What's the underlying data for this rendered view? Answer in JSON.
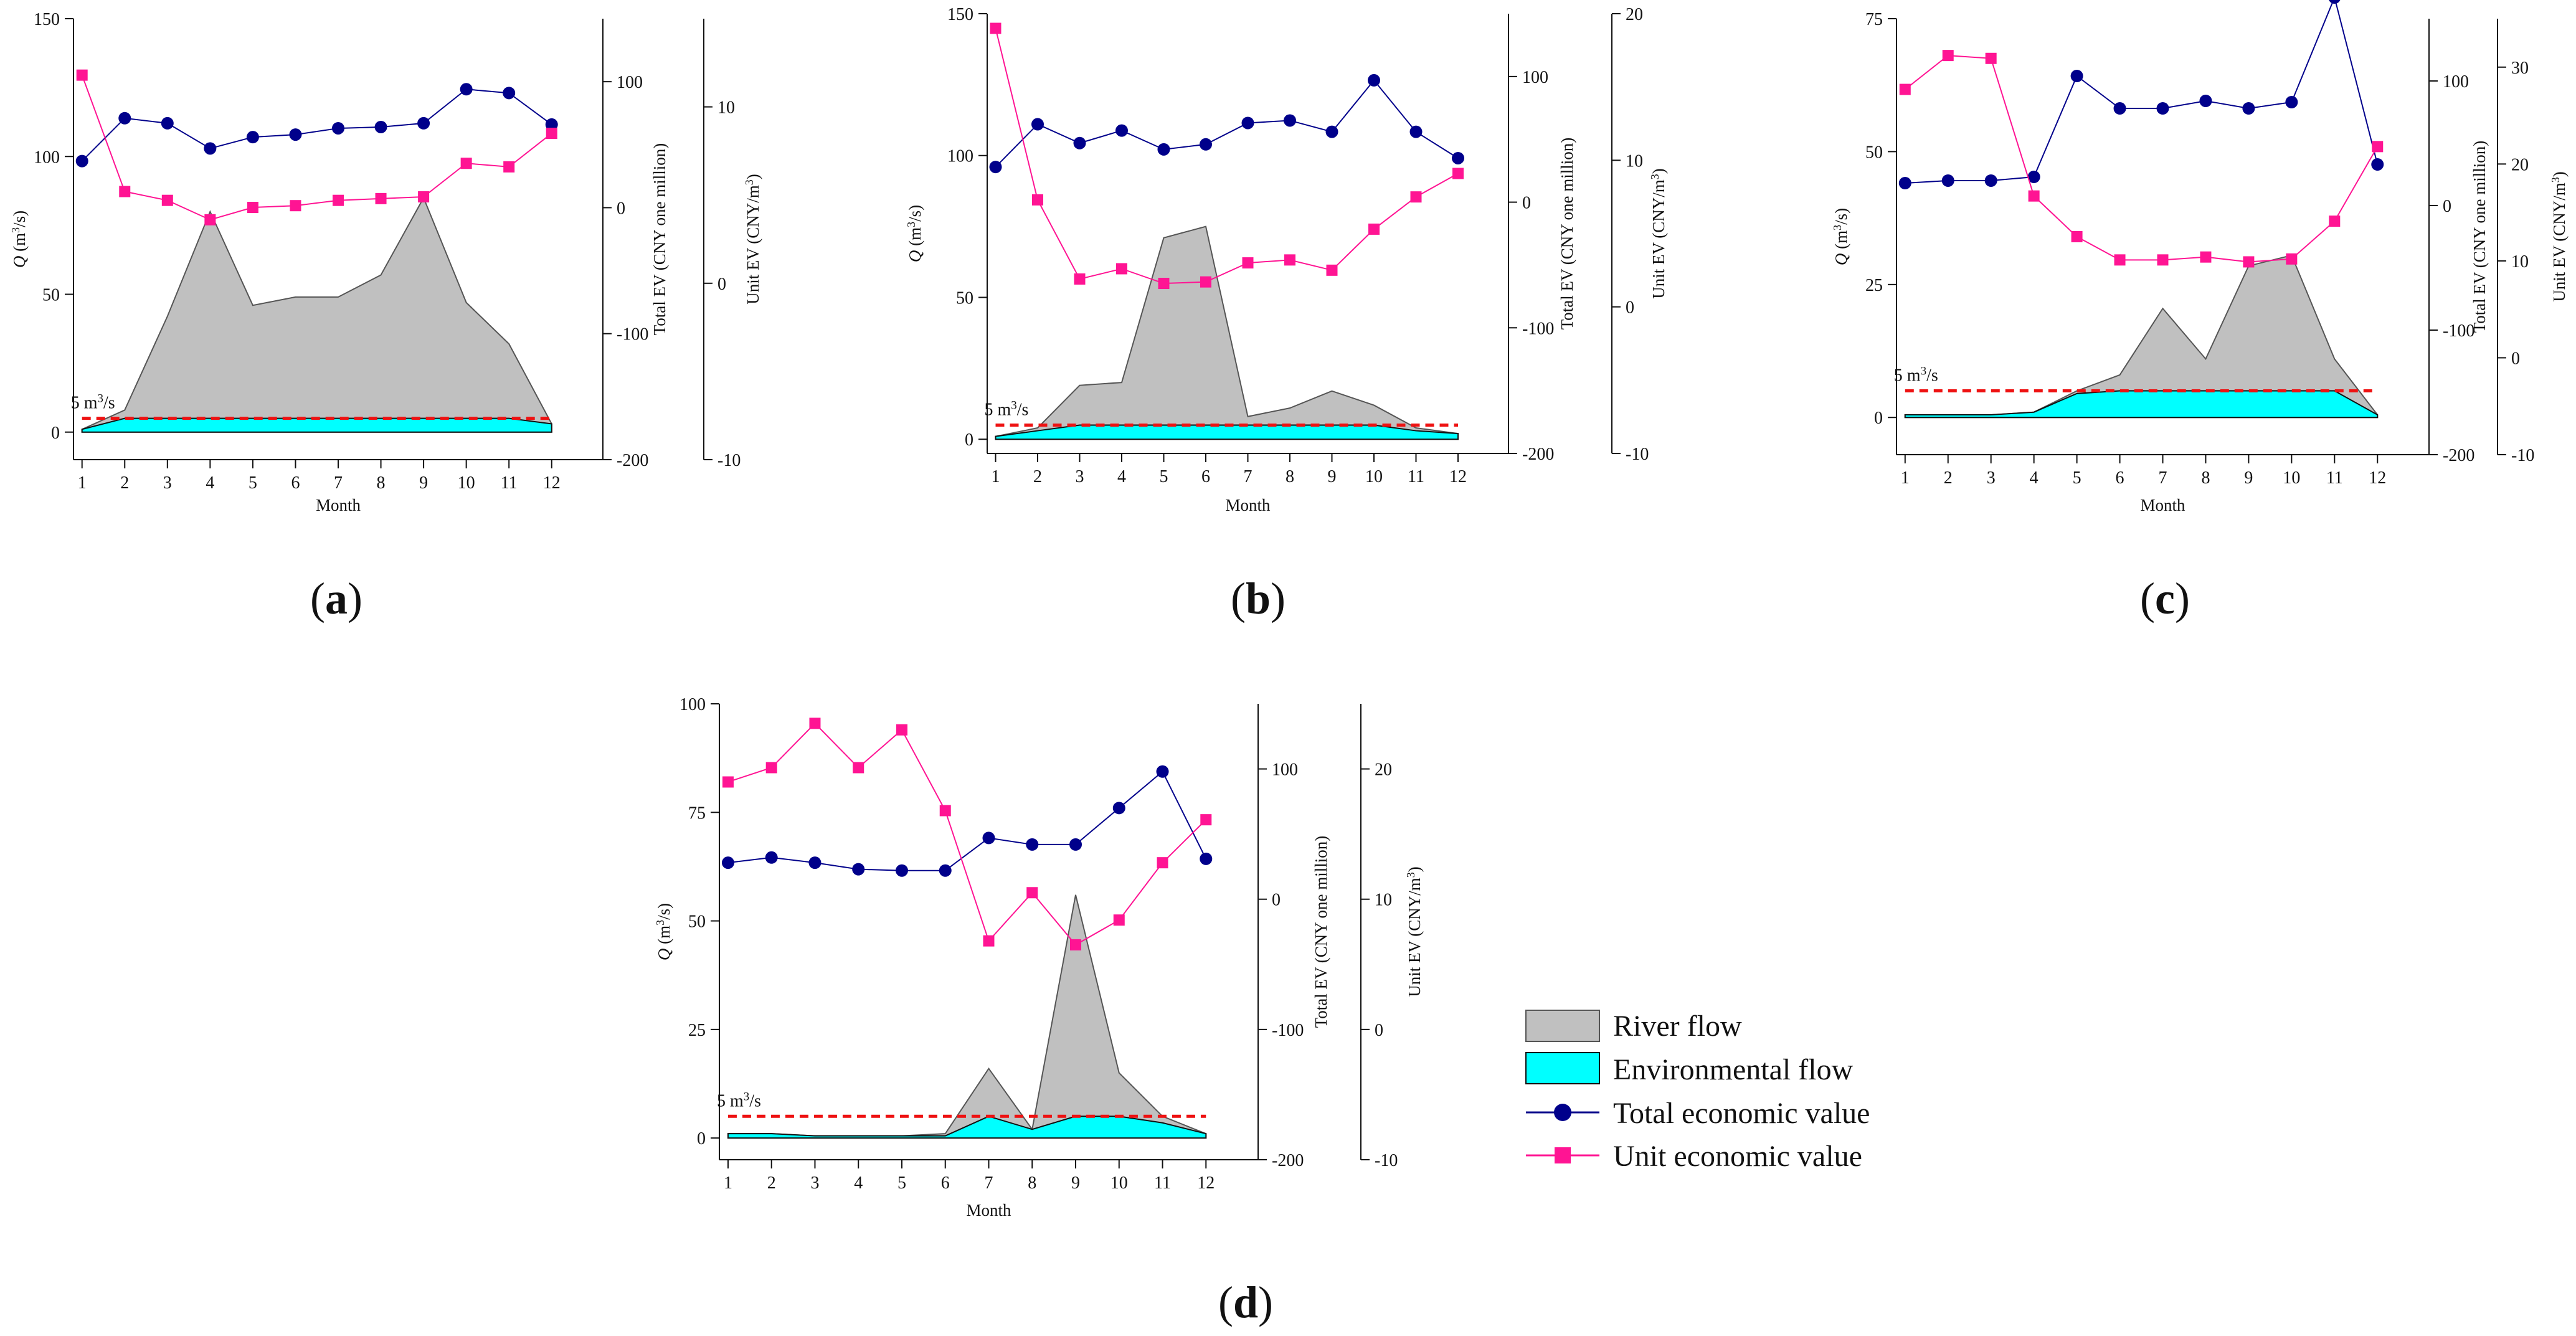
{
  "figure": {
    "panel_labels": [
      "(a)",
      "(b)",
      "(c)",
      "(d)"
    ],
    "panel_letters": [
      "a",
      "b",
      "c",
      "d"
    ],
    "legend": {
      "items": [
        "River flow",
        "Environmental flow",
        "Total economic value",
        "Unit economic value"
      ]
    },
    "colors": {
      "river_fill": "#c0c0c0",
      "river_stroke": "#555555",
      "env_fill": "#00ffff",
      "env_stroke": "#111111",
      "total_ev": "#00008b",
      "unit_ev": "#ff1493",
      "ref_line": "#ee1111"
    }
  },
  "chart_data": [
    {
      "type": "area+line",
      "panel": "(a)",
      "xlabel": "Month",
      "ylabel_left_prefix": "Q",
      "ylabel_left_suffix": " (m",
      "ylabel_left_sup": "3",
      "ylabel_left_end": "/s)",
      "ylabel_total": "Total EV (CNY one million)",
      "ylabel_unit_prefix": "Unit EV (CNY/m",
      "ylabel_unit_sup": "3",
      "ylabel_unit_end": ")",
      "reference_line_label": "5 m",
      "reference_line_sup": "3",
      "reference_line_end": "/s",
      "reference_line_value": 5,
      "x": [
        1,
        2,
        3,
        4,
        5,
        6,
        7,
        8,
        9,
        10,
        11,
        12
      ],
      "q_ylim": [
        -10,
        150
      ],
      "q_ticks": [
        0,
        50,
        100,
        150
      ],
      "total_ylim": [
        -200,
        150
      ],
      "total_ticks": [
        -200,
        -100,
        0,
        100
      ],
      "unit_ylim": [
        -10,
        15
      ],
      "unit_ticks": [
        -10,
        0,
        10
      ],
      "river_flow": [
        1,
        8,
        42,
        80,
        46,
        49,
        49,
        57,
        85,
        47,
        32,
        3
      ],
      "environmental_flow": [
        1,
        5,
        5,
        5,
        5,
        5,
        5,
        5,
        5,
        5,
        5,
        3
      ],
      "total_ev": [
        37,
        71,
        67,
        47,
        56,
        58,
        63,
        64,
        67,
        94,
        91,
        66
      ],
      "unit_ev": [
        11.8,
        5.2,
        4.7,
        3.6,
        4.3,
        4.4,
        4.7,
        4.8,
        4.9,
        6.8,
        6.6,
        8.5
      ]
    },
    {
      "type": "area+line",
      "panel": "(b)",
      "xlabel": "Month",
      "ylabel_left_prefix": "Q",
      "ylabel_left_suffix": " (m",
      "ylabel_left_sup": "3",
      "ylabel_left_end": "/s)",
      "ylabel_total": "Total EV (CNY one million)",
      "ylabel_unit_prefix": "Unit EV (CNY/m",
      "ylabel_unit_sup": "3",
      "ylabel_unit_end": ")",
      "reference_line_label": "5 m",
      "reference_line_sup": "3",
      "reference_line_end": "/s",
      "reference_line_value": 5,
      "x": [
        1,
        2,
        3,
        4,
        5,
        6,
        7,
        8,
        9,
        10,
        11,
        12
      ],
      "q_ylim": [
        -5,
        150
      ],
      "q_ticks": [
        0,
        50,
        100,
        150
      ],
      "total_ylim": [
        -200,
        150
      ],
      "total_ticks": [
        -200,
        -100,
        0,
        100
      ],
      "unit_ylim": [
        -10,
        20
      ],
      "unit_ticks": [
        -10,
        0,
        10,
        20
      ],
      "river_flow": [
        1,
        4,
        19,
        20,
        71,
        75,
        8,
        11,
        17,
        12,
        4,
        2
      ],
      "environmental_flow": [
        1,
        3,
        5,
        5,
        5,
        5,
        5,
        5,
        5,
        5,
        3,
        2
      ],
      "total_ev": [
        28,
        62,
        47,
        57,
        42,
        46,
        63,
        65,
        56,
        97,
        56,
        35
      ],
      "unit_ev": [
        19.0,
        7.3,
        1.9,
        2.6,
        1.6,
        1.7,
        3.0,
        3.2,
        2.5,
        5.3,
        7.5,
        9.1
      ]
    },
    {
      "type": "area+line",
      "panel": "(c)",
      "xlabel": "Month",
      "ylabel_left_prefix": "Q",
      "ylabel_left_suffix": " (m",
      "ylabel_left_sup": "3",
      "ylabel_left_end": "/s)",
      "ylabel_total": "Total EV (CNY one million)",
      "ylabel_unit_prefix": "Unit EV (CNY/m",
      "ylabel_unit_sup": "3",
      "ylabel_unit_end": ")",
      "reference_line_label": "5 m",
      "reference_line_sup": "3",
      "reference_line_end": "/s",
      "reference_line_value": 5,
      "x": [
        1,
        2,
        3,
        4,
        5,
        6,
        7,
        8,
        9,
        10,
        11,
        12
      ],
      "q_ylim": [
        -7,
        75
      ],
      "q_ticks": [
        0,
        25,
        50,
        75
      ],
      "total_ylim": [
        -200,
        150
      ],
      "total_ticks": [
        -200,
        -100,
        0,
        100
      ],
      "unit_ylim": [
        -10,
        35
      ],
      "unit_ticks": [
        -10,
        0,
        10,
        20,
        30
      ],
      "river_flow": [
        0.5,
        0.5,
        0.5,
        1,
        5,
        8,
        20.5,
        11,
        28.5,
        30.5,
        11,
        0.5
      ],
      "environmental_flow": [
        0.5,
        0.5,
        0.5,
        1,
        4.5,
        5,
        5,
        5,
        5,
        5,
        5,
        0.5
      ],
      "total_ev": [
        18,
        20,
        20,
        23,
        104,
        78,
        78,
        84,
        78,
        83,
        167,
        33
      ],
      "unit_ev": [
        27.7,
        31.2,
        30.9,
        16.7,
        12.5,
        10.1,
        10.1,
        10.4,
        9.9,
        10.2,
        14.1,
        21.8
      ]
    },
    {
      "type": "area+line",
      "panel": "(d)",
      "xlabel": "Month",
      "ylabel_left_prefix": "Q",
      "ylabel_left_suffix": " (m",
      "ylabel_left_sup": "3",
      "ylabel_left_end": "/s)",
      "ylabel_total": "Total EV (CNY one million)",
      "ylabel_unit_prefix": "Unit EV (CNY/m",
      "ylabel_unit_sup": "3",
      "ylabel_unit_end": ")",
      "reference_line_label": "5 m",
      "reference_line_sup": "3",
      "reference_line_end": "/s",
      "reference_line_value": 5,
      "x": [
        1,
        2,
        3,
        4,
        5,
        6,
        7,
        8,
        9,
        10,
        11,
        12
      ],
      "q_ylim": [
        -5,
        100
      ],
      "q_ticks": [
        0,
        25,
        50,
        75,
        100
      ],
      "total_ylim": [
        -200,
        150
      ],
      "total_ticks": [
        -200,
        -100,
        0,
        100
      ],
      "unit_ylim": [
        -10,
        25
      ],
      "unit_ticks": [
        -10,
        0,
        10,
        20
      ],
      "river_flow": [
        1,
        1,
        0.5,
        0.5,
        0.5,
        1,
        16,
        2,
        56,
        15,
        5,
        1
      ],
      "environmental_flow": [
        1,
        1,
        0.5,
        0.5,
        0.5,
        0.5,
        5,
        2,
        5,
        5,
        3.5,
        1
      ],
      "total_ev": [
        28,
        32,
        28,
        23,
        22,
        22,
        47,
        42,
        42,
        70,
        98,
        31
      ],
      "unit_ev": [
        19.0,
        20.1,
        23.5,
        20.1,
        23.0,
        16.8,
        6.8,
        10.5,
        6.5,
        8.4,
        12.8,
        16.1
      ]
    }
  ]
}
